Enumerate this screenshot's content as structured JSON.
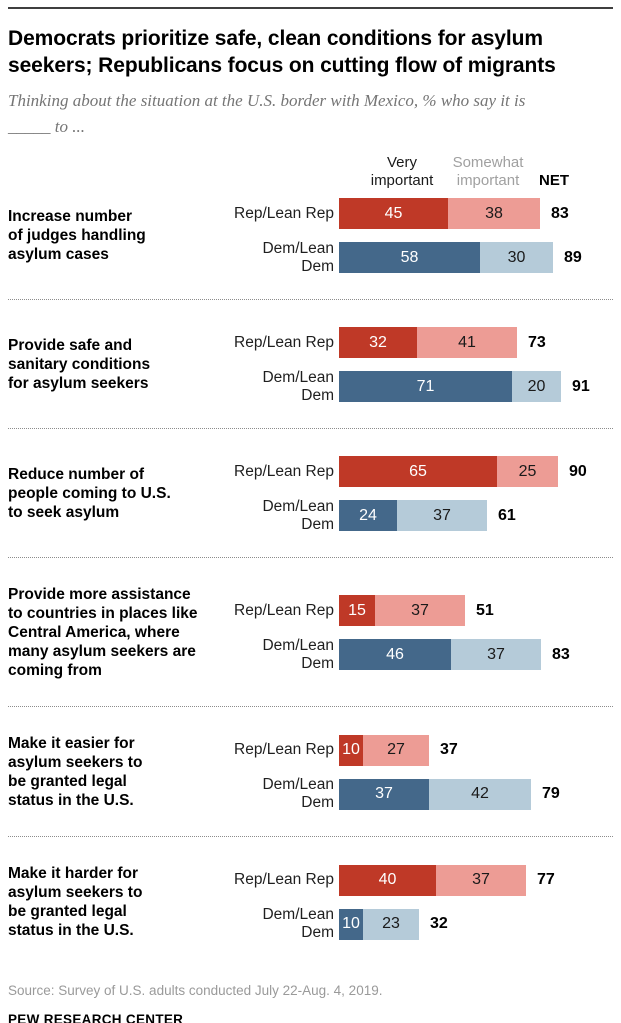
{
  "header": {
    "title": "Democrats prioritize safe, clean conditions for asylum seekers; Republicans focus on cutting flow of migrants",
    "subtitle_line1": "Thinking about the situation at the U.S. border with Mexico, % who say it is",
    "subtitle_line2": "_____ to ..."
  },
  "columns": {
    "very": "Very important",
    "somewhat": "Somewhat important",
    "net": "NET"
  },
  "colors": {
    "rep_very": "#bf3927",
    "rep_somewhat": "#ed9c95",
    "dem_very": "#44688a",
    "dem_somewhat": "#b5cbd9",
    "header_muted": "#a0a0a0",
    "subtitle_gray": "#757575",
    "source_gray": "#9a9a9a"
  },
  "chart_data": {
    "type": "bar",
    "orientation": "horizontal",
    "stacked": true,
    "unit": "%",
    "x_range": [
      0,
      100
    ],
    "grid": false,
    "legend": [
      "Very important",
      "Somewhat important",
      "NET"
    ],
    "legend_position": "top",
    "groups": [
      {
        "label": "Increase number\nof judges handling\nasylum cases",
        "rows": [
          {
            "party": "Rep/Lean Rep",
            "very": 45,
            "somewhat": 38,
            "net": 83
          },
          {
            "party": "Dem/Lean Dem",
            "very": 58,
            "somewhat": 30,
            "net": 89
          }
        ]
      },
      {
        "label": "Provide safe and\nsanitary conditions\nfor asylum seekers",
        "rows": [
          {
            "party": "Rep/Lean Rep",
            "very": 32,
            "somewhat": 41,
            "net": 73
          },
          {
            "party": "Dem/Lean Dem",
            "very": 71,
            "somewhat": 20,
            "net": 91
          }
        ]
      },
      {
        "label": "Reduce number of\npeople coming to U.S.\nto seek asylum",
        "rows": [
          {
            "party": "Rep/Lean Rep",
            "very": 65,
            "somewhat": 25,
            "net": 90
          },
          {
            "party": "Dem/Lean Dem",
            "very": 24,
            "somewhat": 37,
            "net": 61
          }
        ]
      },
      {
        "label": "Provide more assistance\nto countries in places like\nCentral America, where\nmany asylum seekers are\ncoming from",
        "rows": [
          {
            "party": "Rep/Lean Rep",
            "very": 15,
            "somewhat": 37,
            "net": 51
          },
          {
            "party": "Dem/Lean Dem",
            "very": 46,
            "somewhat": 37,
            "net": 83
          }
        ]
      },
      {
        "label": "Make it easier for\nasylum seekers to\nbe granted legal\nstatus in the U.S.",
        "rows": [
          {
            "party": "Rep/Lean Rep",
            "very": 10,
            "somewhat": 27,
            "net": 37
          },
          {
            "party": "Dem/Lean Dem",
            "very": 37,
            "somewhat": 42,
            "net": 79
          }
        ]
      },
      {
        "label": "Make it harder for\nasylum seekers to\nbe granted legal\nstatus in the U.S.",
        "rows": [
          {
            "party": "Rep/Lean Rep",
            "very": 40,
            "somewhat": 37,
            "net": 77
          },
          {
            "party": "Dem/Lean Dem",
            "very": 10,
            "somewhat": 23,
            "net": 32
          }
        ]
      }
    ]
  },
  "footer": {
    "source": "Source: Survey of U.S. adults conducted July 22-Aug. 4, 2019.",
    "brand": "PEW RESEARCH CENTER"
  }
}
